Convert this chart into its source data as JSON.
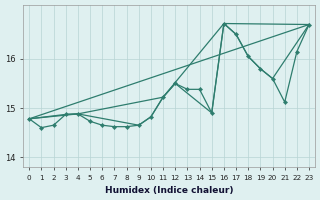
{
  "xlabel": "Humidex (Indice chaleur)",
  "xlim": [
    -0.5,
    23.5
  ],
  "ylim": [
    13.8,
    17.1
  ],
  "yticks": [
    14,
    15,
    16
  ],
  "xticks": [
    0,
    1,
    2,
    3,
    4,
    5,
    6,
    7,
    8,
    9,
    10,
    11,
    12,
    13,
    14,
    15,
    16,
    17,
    18,
    19,
    20,
    21,
    22,
    23
  ],
  "line_color": "#2e7d6e",
  "bg_color": "#dff0f0",
  "grid_color": "#b8d4d4",
  "series": [
    {
      "x": [
        0,
        1,
        2,
        3,
        4,
        5,
        6,
        7,
        8,
        9,
        10,
        11,
        12,
        13,
        14,
        15,
        16,
        17,
        18,
        19,
        20,
        21,
        22,
        23
      ],
      "y": [
        14.78,
        14.6,
        14.65,
        14.87,
        14.88,
        14.73,
        14.65,
        14.62,
        14.62,
        14.65,
        14.82,
        15.22,
        15.5,
        15.38,
        15.38,
        14.9,
        16.72,
        16.5,
        16.05,
        15.8,
        15.6,
        15.12,
        16.15,
        16.7
      ]
    },
    {
      "x": [
        0,
        3,
        4,
        9,
        10,
        11,
        12,
        15,
        16,
        17,
        18,
        19,
        20,
        23
      ],
      "y": [
        14.78,
        14.87,
        14.88,
        14.65,
        14.82,
        15.22,
        15.5,
        14.9,
        16.72,
        16.5,
        16.05,
        15.8,
        15.6,
        16.7
      ]
    },
    {
      "x": [
        0,
        4,
        11,
        16,
        23
      ],
      "y": [
        14.78,
        14.88,
        15.22,
        16.72,
        16.7
      ]
    },
    {
      "x": [
        0,
        23
      ],
      "y": [
        14.78,
        16.7
      ]
    }
  ]
}
